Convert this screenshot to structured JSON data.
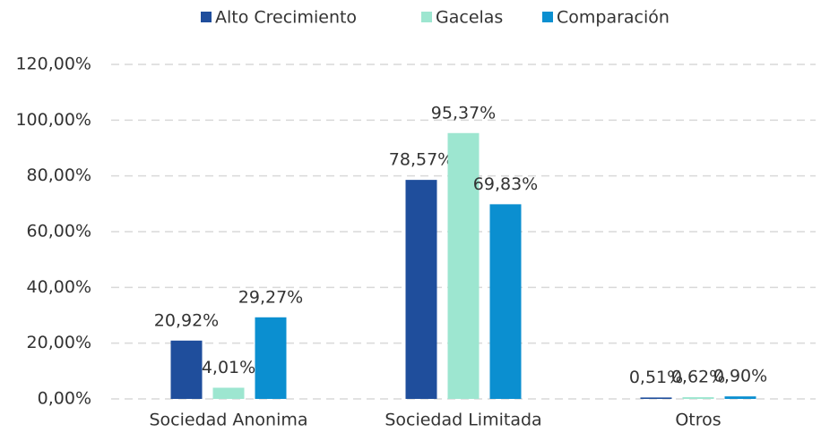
{
  "chart_data": {
    "type": "bar",
    "categories": [
      "Sociedad Anonima",
      "Sociedad Limitada",
      "Otros"
    ],
    "series": [
      {
        "name": "Alto Crecimiento",
        "color": "#1f4e9c",
        "values": [
          20.92,
          78.57,
          0.51
        ],
        "value_labels": [
          "20,92%",
          "78,57%",
          "0,51%"
        ]
      },
      {
        "name": "Gacelas",
        "color": "#9de6d0",
        "values": [
          4.01,
          95.37,
          0.62
        ],
        "value_labels": [
          "4,01%",
          "95,37%",
          "0,62%"
        ]
      },
      {
        "name": "Comparación",
        "color": "#0b8fd0",
        "values": [
          29.27,
          69.83,
          0.9
        ],
        "value_labels": [
          "29,27%",
          "69,83%",
          "0,90%"
        ]
      }
    ],
    "ylim": [
      0,
      120
    ],
    "yticks": [
      {
        "value": 0,
        "label": "0,00%"
      },
      {
        "value": 20,
        "label": "20,00%"
      },
      {
        "value": 40,
        "label": "40,00%"
      },
      {
        "value": 60,
        "label": "60,00%"
      },
      {
        "value": 80,
        "label": "80,00%"
      },
      {
        "value": 100,
        "label": "100,00%"
      },
      {
        "value": 120,
        "label": "120,00%"
      }
    ],
    "grid": true,
    "legend": "top"
  }
}
